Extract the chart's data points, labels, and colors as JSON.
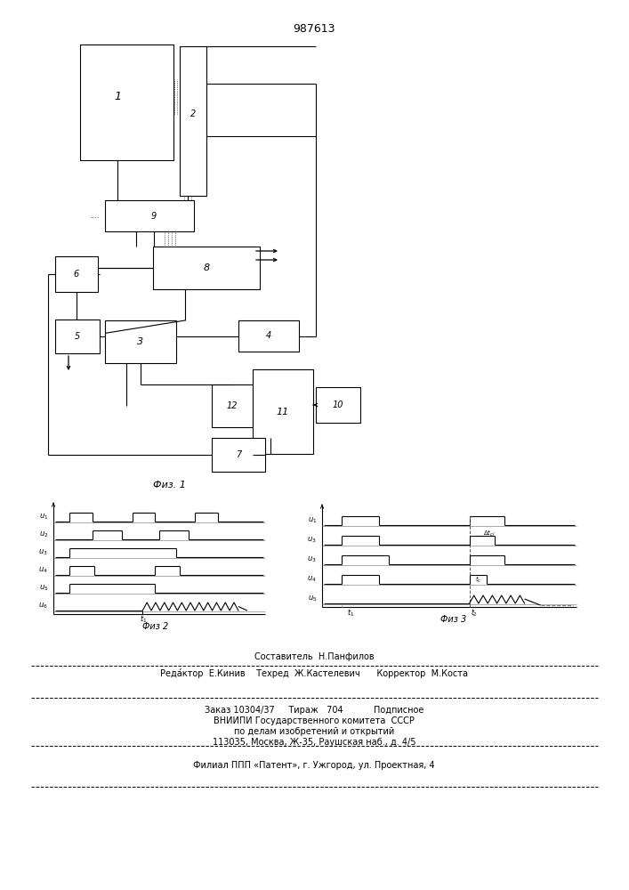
{
  "title": "987613",
  "fig1_label": "Физ. 1",
  "fig2_label": "Физ 2",
  "fig3_label": "Физ 3",
  "footer_line1": "Составитель  Н.Панфилов",
  "footer_line2": "Реда́ктор  Е.Кинив    Техред  Ж.Кастелевич      Корректор  М.Коста",
  "footer_line3": "Заказ 10304/37     Тираж   704           Подписное",
  "footer_line4": "ВНИИПИ Государственного комитета  СССР",
  "footer_line5": "по делам изобретений и открытий",
  "footer_line6": "113035, Москва, Ж-35, Раушская наб., д. 4/5",
  "footer_line7": "Филиал ППП «Патент», г. Ужгород, ул. Проектная, 4"
}
